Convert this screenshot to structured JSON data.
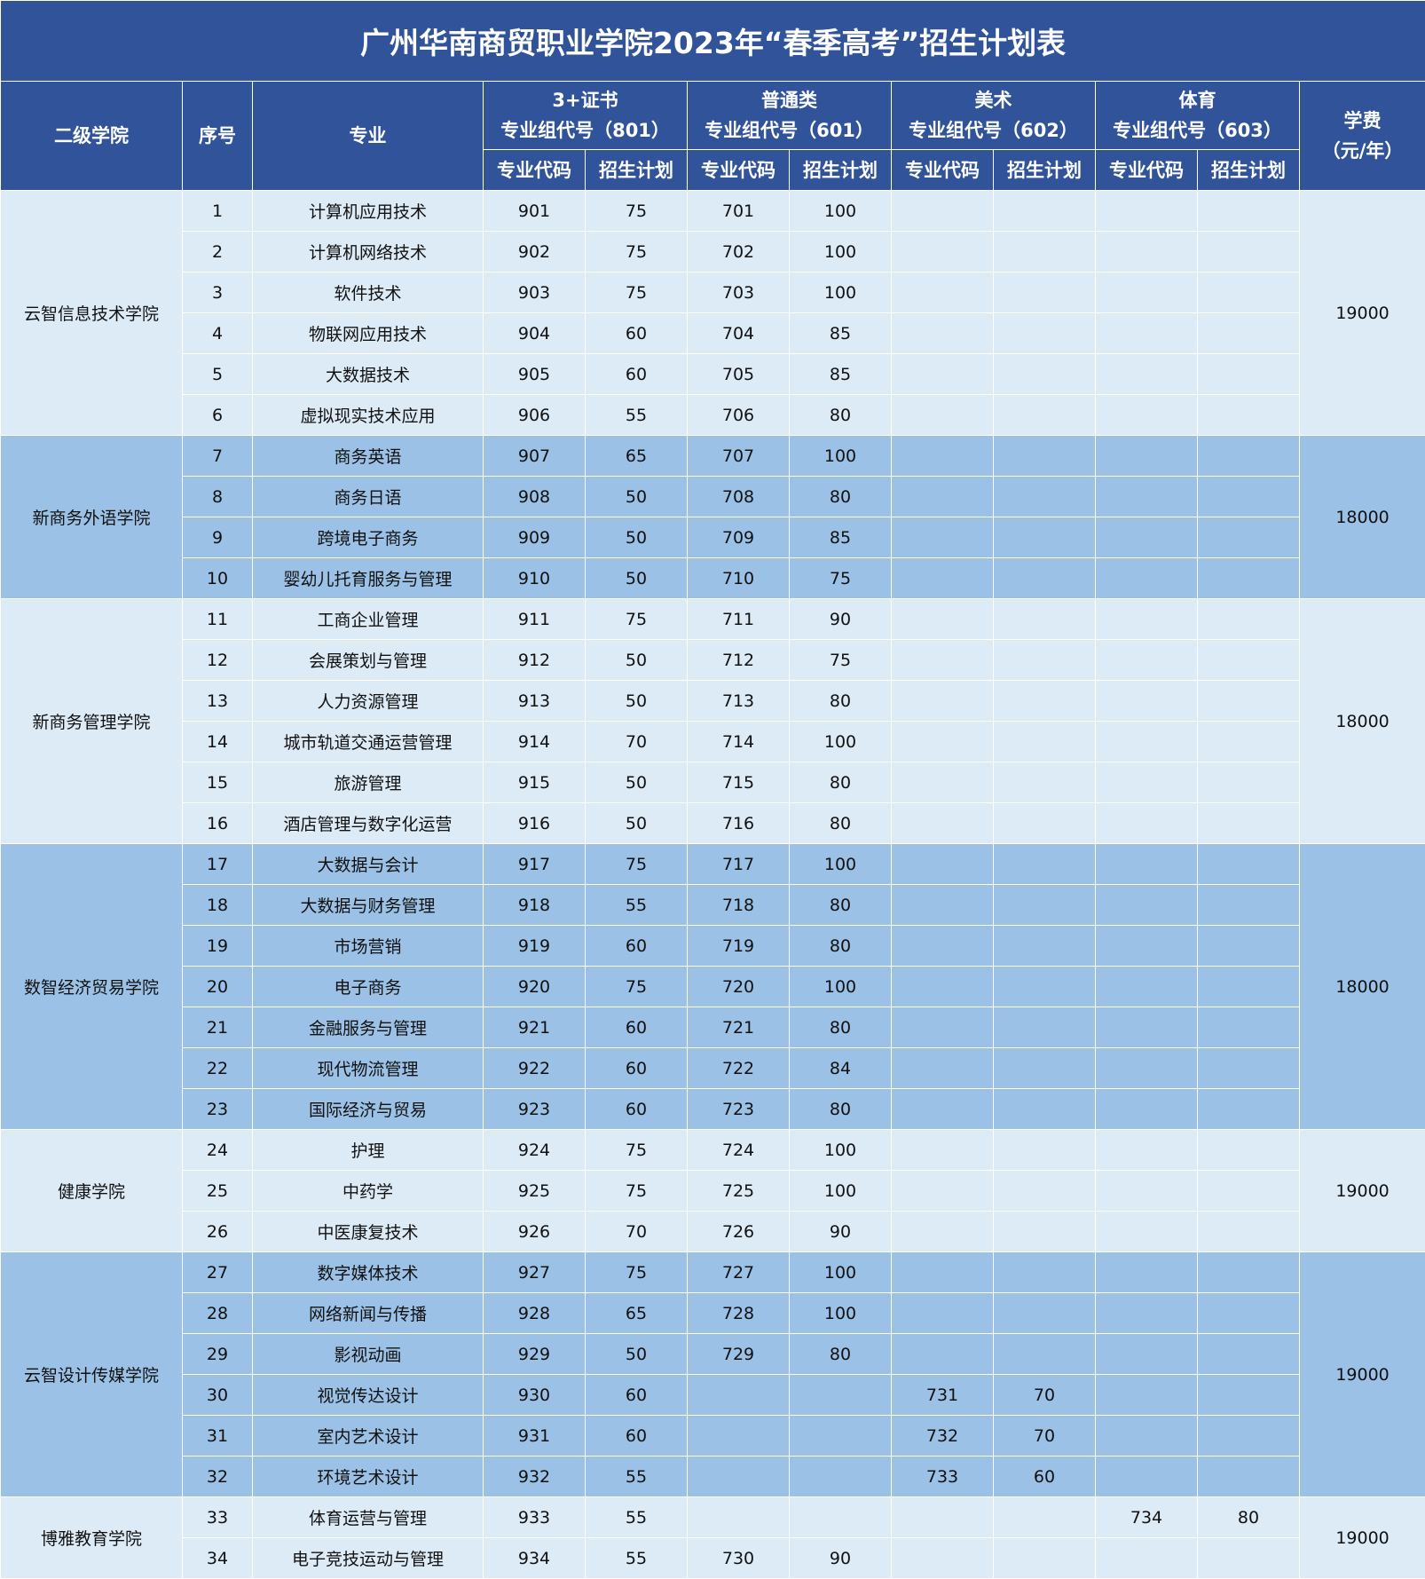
{
  "title": "广州华南商贸职业学院2023年“春季高考”招生计划表",
  "headers": {
    "college": "二级学院",
    "seq": "序号",
    "major": "专业",
    "groups": [
      {
        "name": "3+证书",
        "code": "专业组代号（801）"
      },
      {
        "name": "普通类",
        "code": "专业组代号（601）"
      },
      {
        "name": "美术",
        "code": "专业组代号（602）"
      },
      {
        "name": "体育",
        "code": "专业组代号（603）"
      }
    ],
    "sub_code": "专业代码",
    "sub_plan": "招生计划",
    "fee": "学费",
    "fee_unit": "（元/年）"
  },
  "colors": {
    "header": "#30539a",
    "light_row": "#ddebf7",
    "dark_row": "#9bc2e6"
  },
  "colleges": [
    {
      "name": "云智信息技术学院",
      "fee": "19000",
      "shade": "light",
      "rows": [
        [
          "1",
          "计算机应用技术",
          "901",
          "75",
          "701",
          "100",
          "",
          "",
          "",
          ""
        ],
        [
          "2",
          "计算机网络技术",
          "902",
          "75",
          "702",
          "100",
          "",
          "",
          "",
          ""
        ],
        [
          "3",
          "软件技术",
          "903",
          "75",
          "703",
          "100",
          "",
          "",
          "",
          ""
        ],
        [
          "4",
          "物联网应用技术",
          "904",
          "60",
          "704",
          "85",
          "",
          "",
          "",
          ""
        ],
        [
          "5",
          "大数据技术",
          "905",
          "60",
          "705",
          "85",
          "",
          "",
          "",
          ""
        ],
        [
          "6",
          "虚拟现实技术应用",
          "906",
          "55",
          "706",
          "80",
          "",
          "",
          "",
          ""
        ]
      ]
    },
    {
      "name": "新商务外语学院",
      "fee": "18000",
      "shade": "dark",
      "rows": [
        [
          "7",
          "商务英语",
          "907",
          "65",
          "707",
          "100",
          "",
          "",
          "",
          ""
        ],
        [
          "8",
          "商务日语",
          "908",
          "50",
          "708",
          "80",
          "",
          "",
          "",
          ""
        ],
        [
          "9",
          "跨境电子商务",
          "909",
          "50",
          "709",
          "85",
          "",
          "",
          "",
          ""
        ],
        [
          "10",
          "婴幼儿托育服务与管理",
          "910",
          "50",
          "710",
          "75",
          "",
          "",
          "",
          ""
        ]
      ]
    },
    {
      "name": "新商务管理学院",
      "fee": "18000",
      "shade": "light",
      "rows": [
        [
          "11",
          "工商企业管理",
          "911",
          "75",
          "711",
          "90",
          "",
          "",
          "",
          ""
        ],
        [
          "12",
          "会展策划与管理",
          "912",
          "50",
          "712",
          "75",
          "",
          "",
          "",
          ""
        ],
        [
          "13",
          "人力资源管理",
          "913",
          "50",
          "713",
          "80",
          "",
          "",
          "",
          ""
        ],
        [
          "14",
          "城市轨道交通运营管理",
          "914",
          "70",
          "714",
          "100",
          "",
          "",
          "",
          ""
        ],
        [
          "15",
          "旅游管理",
          "915",
          "50",
          "715",
          "80",
          "",
          "",
          "",
          ""
        ],
        [
          "16",
          "酒店管理与数字化运营",
          "916",
          "50",
          "716",
          "80",
          "",
          "",
          "",
          ""
        ]
      ]
    },
    {
      "name": "数智经济贸易学院",
      "fee": "18000",
      "shade": "dark",
      "rows": [
        [
          "17",
          "大数据与会计",
          "917",
          "75",
          "717",
          "100",
          "",
          "",
          "",
          ""
        ],
        [
          "18",
          "大数据与财务管理",
          "918",
          "55",
          "718",
          "80",
          "",
          "",
          "",
          ""
        ],
        [
          "19",
          "市场营销",
          "919",
          "60",
          "719",
          "80",
          "",
          "",
          "",
          ""
        ],
        [
          "20",
          "电子商务",
          "920",
          "75",
          "720",
          "100",
          "",
          "",
          "",
          ""
        ],
        [
          "21",
          "金融服务与管理",
          "921",
          "60",
          "721",
          "80",
          "",
          "",
          "",
          ""
        ],
        [
          "22",
          "现代物流管理",
          "922",
          "60",
          "722",
          "84",
          "",
          "",
          "",
          ""
        ],
        [
          "23",
          "国际经济与贸易",
          "923",
          "60",
          "723",
          "80",
          "",
          "",
          "",
          ""
        ]
      ]
    },
    {
      "name": "健康学院",
      "fee": "19000",
      "shade": "light",
      "rows": [
        [
          "24",
          "护理",
          "924",
          "75",
          "724",
          "100",
          "",
          "",
          "",
          ""
        ],
        [
          "25",
          "中药学",
          "925",
          "75",
          "725",
          "100",
          "",
          "",
          "",
          ""
        ],
        [
          "26",
          "中医康复技术",
          "926",
          "70",
          "726",
          "90",
          "",
          "",
          "",
          ""
        ]
      ]
    },
    {
      "name": "云智设计传媒学院",
      "fee": "19000",
      "shade": "dark",
      "rows": [
        [
          "27",
          "数字媒体技术",
          "927",
          "75",
          "727",
          "100",
          "",
          "",
          "",
          ""
        ],
        [
          "28",
          "网络新闻与传播",
          "928",
          "65",
          "728",
          "100",
          "",
          "",
          "",
          ""
        ],
        [
          "29",
          "影视动画",
          "929",
          "50",
          "729",
          "80",
          "",
          "",
          "",
          ""
        ],
        [
          "30",
          "视觉传达设计",
          "930",
          "60",
          "",
          "",
          "731",
          "70",
          "",
          ""
        ],
        [
          "31",
          "室内艺术设计",
          "931",
          "60",
          "",
          "",
          "732",
          "70",
          "",
          ""
        ],
        [
          "32",
          "环境艺术设计",
          "932",
          "55",
          "",
          "",
          "733",
          "60",
          "",
          ""
        ]
      ]
    },
    {
      "name": "博雅教育学院",
      "fee": "19000",
      "shade": "light",
      "rows": [
        [
          "33",
          "体育运营与管理",
          "933",
          "55",
          "",
          "",
          "",
          "",
          "734",
          "80"
        ],
        [
          "34",
          "电子竞技运动与管理",
          "934",
          "55",
          "730",
          "90",
          "",
          "",
          "",
          ""
        ]
      ]
    }
  ]
}
